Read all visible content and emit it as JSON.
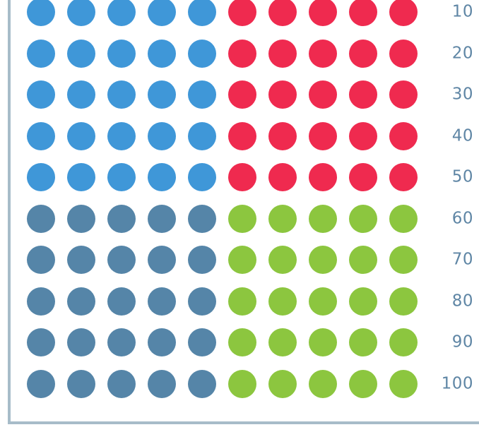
{
  "colors": {
    "top_left": "#3f97d8",
    "top_right": "#ef2a4f",
    "bottom_left": "#5585a8",
    "bottom_right": "#8cc63f",
    "label": "#5f86a5",
    "frame": "#a7bcc9"
  },
  "rows": [
    {
      "label": "10",
      "left_color": "top_left",
      "right_color": "top_right"
    },
    {
      "label": "20",
      "left_color": "top_left",
      "right_color": "top_right"
    },
    {
      "label": "30",
      "left_color": "top_left",
      "right_color": "top_right"
    },
    {
      "label": "40",
      "left_color": "top_left",
      "right_color": "top_right"
    },
    {
      "label": "50",
      "left_color": "top_left",
      "right_color": "top_right"
    },
    {
      "label": "60",
      "left_color": "bottom_left",
      "right_color": "bottom_right"
    },
    {
      "label": "70",
      "left_color": "bottom_left",
      "right_color": "bottom_right"
    },
    {
      "label": "80",
      "left_color": "bottom_left",
      "right_color": "bottom_right"
    },
    {
      "label": "90",
      "left_color": "bottom_left",
      "right_color": "bottom_right"
    },
    {
      "label": "100",
      "left_color": "bottom_left",
      "right_color": "bottom_right"
    }
  ],
  "dots_per_side": 5
}
